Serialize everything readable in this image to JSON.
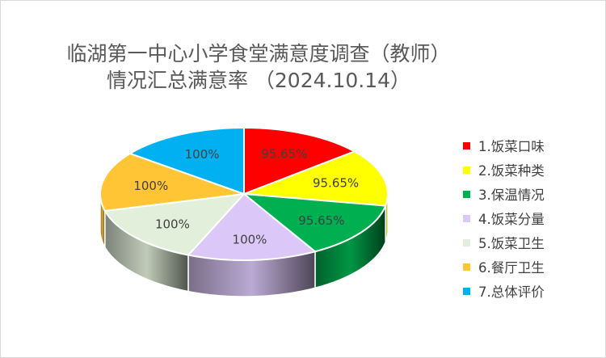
{
  "chart_data": {
    "type": "pie",
    "title": "临湖第一中心小学食堂满意度调查（教师）",
    "subtitle": "情况汇总满意率 （2024.10.14）",
    "categories": [
      "1.饭菜口味",
      "2.饭菜种类",
      "3.保温情况",
      "4.饭菜分量",
      "5.饭菜卫生",
      "6.餐厅卫生",
      "7.总体评价"
    ],
    "values": [
      95.65,
      95.65,
      95.65,
      100,
      100,
      100,
      100
    ],
    "labels": [
      "95.65%",
      "95.65%",
      "95.65%",
      "100%",
      "100%",
      "100%",
      "100%"
    ],
    "colors": [
      "#ff0000",
      "#ffff00",
      "#00b050",
      "#dcc8f8",
      "#e2efda",
      "#ffc535",
      "#00b0f0"
    ],
    "legend_position": "right"
  }
}
